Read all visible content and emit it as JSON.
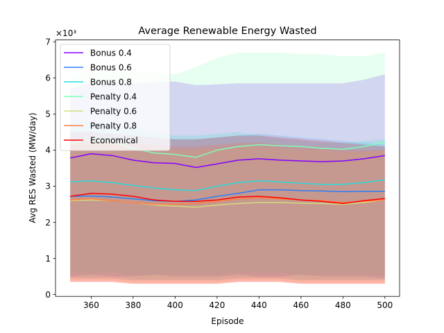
{
  "chart_data": {
    "type": "line",
    "title": "Average Renewable Energy Wasted",
    "xlabel": "Episode",
    "ylabel": "Avg RES Wasted (MW/day)",
    "y_multiplier_label": "×10³",
    "xlim": [
      343,
      507
    ],
    "ylim": [
      -0.05,
      7.05
    ],
    "xticks": [
      360,
      380,
      400,
      420,
      440,
      460,
      480,
      500
    ],
    "yticks": [
      0,
      1,
      2,
      3,
      4,
      5,
      6,
      7
    ],
    "grid": false,
    "legend_position": "upper-left",
    "x": [
      350,
      360,
      370,
      380,
      390,
      400,
      410,
      420,
      430,
      440,
      450,
      460,
      470,
      480,
      490,
      500
    ],
    "series": [
      {
        "name": "Bonus 0.4",
        "color": "#8000ff",
        "values": [
          3.78,
          3.9,
          3.85,
          3.72,
          3.65,
          3.63,
          3.52,
          3.62,
          3.72,
          3.76,
          3.72,
          3.7,
          3.68,
          3.7,
          3.76,
          3.85
        ],
        "upper": [
          5.7,
          5.85,
          5.9,
          5.85,
          5.88,
          5.9,
          5.8,
          5.82,
          5.85,
          5.85,
          5.85,
          5.85,
          5.85,
          5.85,
          5.95,
          6.1
        ],
        "lower": [
          0.5,
          0.55,
          0.5,
          0.5,
          0.55,
          0.5,
          0.5,
          0.5,
          0.55,
          0.5,
          0.5,
          0.55,
          0.5,
          0.5,
          0.5,
          0.45
        ]
      },
      {
        "name": "Bonus 0.6",
        "color": "#2c7ef7",
        "values": [
          2.72,
          2.73,
          2.7,
          2.65,
          2.6,
          2.58,
          2.62,
          2.72,
          2.8,
          2.9,
          2.9,
          2.88,
          2.87,
          2.85,
          2.86,
          2.86
        ],
        "upper": [
          4.5,
          4.5,
          4.45,
          4.4,
          4.35,
          4.3,
          4.3,
          4.35,
          4.4,
          4.45,
          4.4,
          4.35,
          4.3,
          4.25,
          4.2,
          4.15
        ],
        "lower": [
          0.45,
          0.45,
          0.45,
          0.4,
          0.4,
          0.4,
          0.4,
          0.4,
          0.45,
          0.45,
          0.45,
          0.4,
          0.4,
          0.4,
          0.4,
          0.4
        ]
      },
      {
        "name": "Bonus 0.8",
        "color": "#2adddd",
        "values": [
          3.12,
          3.15,
          3.1,
          3.02,
          2.95,
          2.9,
          2.88,
          3.0,
          3.1,
          3.15,
          3.12,
          3.08,
          3.05,
          3.05,
          3.1,
          3.18
        ],
        "upper": [
          4.8,
          4.8,
          4.7,
          4.6,
          4.5,
          4.4,
          4.4,
          4.45,
          4.5,
          4.4,
          4.3,
          4.25,
          4.2,
          4.2,
          4.25,
          4.3
        ],
        "lower": [
          0.6,
          0.6,
          0.6,
          0.55,
          0.55,
          0.55,
          0.55,
          0.55,
          0.6,
          0.6,
          0.6,
          0.55,
          0.55,
          0.55,
          0.55,
          0.55
        ]
      },
      {
        "name": "Penalty 0.4",
        "color": "#80ffb4",
        "values": [
          4.18,
          4.3,
          4.25,
          4.05,
          3.92,
          3.88,
          3.8,
          4.0,
          4.1,
          4.15,
          4.12,
          4.1,
          4.05,
          4.02,
          4.1,
          4.22
        ],
        "upper": [
          6.1,
          6.15,
          6.2,
          6.15,
          6.15,
          6.1,
          6.3,
          6.55,
          6.7,
          6.7,
          6.7,
          6.65,
          6.65,
          6.6,
          6.6,
          6.7
        ],
        "lower": [
          0.5,
          0.5,
          0.5,
          0.45,
          0.45,
          0.45,
          0.45,
          0.45,
          0.5,
          0.5,
          0.5,
          0.45,
          0.45,
          0.45,
          0.45,
          0.45
        ]
      },
      {
        "name": "Penalty 0.6",
        "color": "#d4dd80",
        "values": [
          2.6,
          2.62,
          2.6,
          2.55,
          2.48,
          2.45,
          2.42,
          2.48,
          2.52,
          2.55,
          2.55,
          2.53,
          2.52,
          2.5,
          2.55,
          2.62
        ],
        "upper": [
          4.2,
          4.2,
          4.15,
          4.1,
          4.05,
          4.0,
          4.0,
          4.05,
          4.1,
          4.1,
          4.05,
          4.0,
          4.0,
          3.95,
          3.95,
          4.0
        ],
        "lower": [
          0.4,
          0.4,
          0.4,
          0.35,
          0.35,
          0.35,
          0.35,
          0.35,
          0.4,
          0.4,
          0.4,
          0.35,
          0.35,
          0.35,
          0.35,
          0.35
        ]
      },
      {
        "name": "Penalty 0.8",
        "color": "#ff7e41",
        "values": [
          2.62,
          2.65,
          2.6,
          2.55,
          2.5,
          2.5,
          2.52,
          2.58,
          2.65,
          2.68,
          2.65,
          2.62,
          2.6,
          2.55,
          2.58,
          2.62
        ],
        "upper": [
          4.3,
          4.3,
          4.25,
          4.2,
          4.15,
          4.1,
          4.1,
          4.15,
          4.2,
          4.2,
          4.15,
          4.1,
          4.05,
          4.0,
          4.0,
          4.0
        ],
        "lower": [
          0.35,
          0.35,
          0.35,
          0.3,
          0.3,
          0.3,
          0.3,
          0.3,
          0.35,
          0.35,
          0.35,
          0.3,
          0.3,
          0.3,
          0.3,
          0.3
        ]
      },
      {
        "name": "Economical",
        "color": "#ff0000",
        "values": [
          2.72,
          2.8,
          2.78,
          2.72,
          2.62,
          2.58,
          2.58,
          2.62,
          2.7,
          2.72,
          2.68,
          2.62,
          2.58,
          2.52,
          2.6,
          2.66
        ],
        "upper": [
          4.5,
          4.5,
          4.45,
          4.4,
          4.35,
          4.3,
          4.3,
          4.35,
          4.4,
          4.4,
          4.35,
          4.3,
          4.25,
          4.2,
          4.15,
          4.1
        ],
        "lower": [
          0.35,
          0.35,
          0.35,
          0.3,
          0.3,
          0.3,
          0.3,
          0.3,
          0.35,
          0.35,
          0.35,
          0.3,
          0.3,
          0.3,
          0.3,
          0.3
        ]
      }
    ]
  }
}
